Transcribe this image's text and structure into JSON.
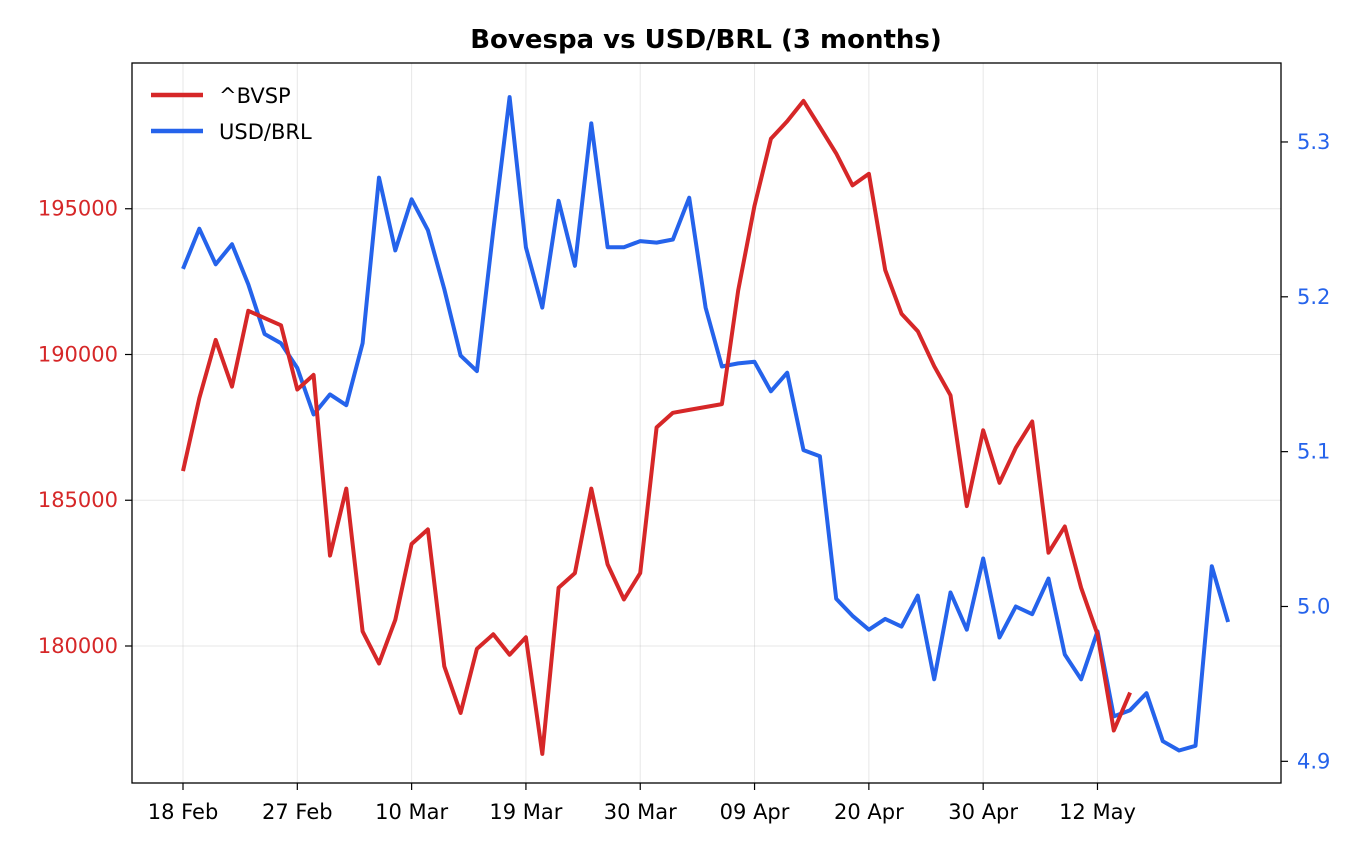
{
  "chart_data": {
    "type": "line",
    "title": "Bovespa vs USD/BRL (3 months)",
    "xlabel": "",
    "ylabel_left": "",
    "ylabel_right": "",
    "x_tick_labels": [
      "18 Feb",
      "27 Feb",
      "10 Mar",
      "19 Mar",
      "30 Mar",
      "09 Apr",
      "20 Apr",
      "30 Apr",
      "12 May"
    ],
    "left_axis": {
      "ylim": [
        175300,
        200000
      ],
      "ticks": [
        180000,
        185000,
        190000,
        195000
      ],
      "color": "#d62728"
    },
    "right_axis": {
      "ylim": [
        4.886,
        5.351
      ],
      "ticks": [
        4.9,
        5.0,
        5.1,
        5.2,
        5.3
      ],
      "tick_labels": [
        "4.9",
        "5.0",
        "5.1",
        "5.2",
        "5.3"
      ],
      "color": "#2563eb"
    },
    "grid": true,
    "legend_position": "top-left",
    "series": [
      {
        "name": "^BVSP",
        "axis": "left",
        "color": "#d62728",
        "values": [
          186000,
          188500,
          190500,
          188900,
          191500,
          191250,
          191000,
          188800,
          189300,
          183100,
          185400,
          180500,
          179400,
          180900,
          183500,
          184000,
          179300,
          177700,
          179900,
          180400,
          179700,
          180300,
          176300,
          182000,
          182500,
          185400,
          182800,
          181600,
          182500,
          187500,
          188000,
          188100,
          188200,
          188300,
          192200,
          195100,
          197400,
          198000,
          198700,
          197800,
          196900,
          195800,
          196200,
          192900,
          191400,
          190800,
          189600,
          188600,
          184800,
          187400,
          185600,
          186800,
          187700,
          183200,
          184100,
          182000,
          180400,
          177100,
          178400
        ]
      },
      {
        "name": "USD/BRL",
        "axis": "right",
        "color": "#2563eb",
        "values": [
          5.218,
          5.244,
          5.221,
          5.234,
          5.208,
          5.176,
          5.17,
          5.154,
          5.124,
          5.137,
          5.13,
          5.17,
          5.277,
          5.23,
          5.263,
          5.243,
          5.205,
          5.162,
          5.152,
          5.243,
          5.329,
          5.232,
          5.193,
          5.262,
          5.22,
          5.312,
          5.232,
          5.232,
          5.236,
          5.235,
          5.237,
          5.264,
          5.193,
          5.155,
          5.157,
          5.158,
          5.139,
          5.151,
          5.101,
          5.097,
          5.005,
          4.994,
          4.985,
          4.992,
          4.987,
          5.007,
          4.953,
          5.009,
          4.985,
          5.031,
          4.98,
          5.0,
          4.995,
          5.018,
          4.969,
          4.953,
          4.984,
          4.929,
          4.933,
          4.944,
          4.913,
          4.907,
          4.91,
          5.026,
          4.99
        ]
      }
    ]
  }
}
